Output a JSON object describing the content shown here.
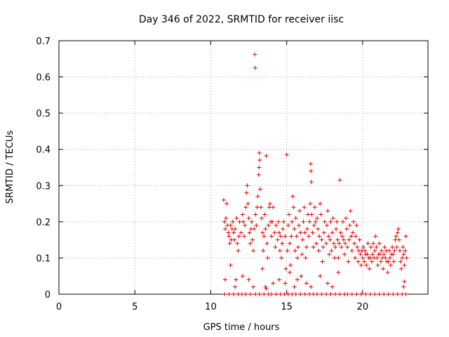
{
  "chart_data": {
    "type": "scatter",
    "title": "Day 346 of 2022, SRMTID for receiver iisc",
    "xlabel": "GPS time / hours",
    "ylabel": "SRMTID / TECUs",
    "xlim": [
      0,
      24.3
    ],
    "ylim": [
      0,
      0.7
    ],
    "xticks": [
      0,
      5,
      10,
      15,
      20
    ],
    "xtick_labels": [
      "0",
      "5",
      "10",
      "15",
      "20"
    ],
    "yticks": [
      0,
      0.1,
      0.2,
      0.3,
      0.4,
      0.5,
      0.6,
      0.7
    ],
    "ytick_labels": [
      "0",
      "0.1",
      "0.2",
      "0.3",
      "0.4",
      "0.5",
      "0.6",
      "0.7"
    ],
    "grid": true,
    "marker": "+",
    "color": "#e60000",
    "series": [
      {
        "name": "SRMTID",
        "points": [
          [
            10.85,
            0.26
          ],
          [
            10.9,
            0.2
          ],
          [
            10.95,
            0.18
          ],
          [
            11.0,
            0.21
          ],
          [
            11.05,
            0.25
          ],
          [
            11.1,
            0.19
          ],
          [
            11.15,
            0.17
          ],
          [
            11.2,
            0.16
          ],
          [
            11.25,
            0.14
          ],
          [
            11.3,
            0.19
          ],
          [
            11.35,
            0.15
          ],
          [
            11.4,
            0.18
          ],
          [
            11.45,
            0.2
          ],
          [
            11.5,
            0.17
          ],
          [
            11.55,
            0.15
          ],
          [
            11.6,
            0.18
          ],
          [
            11.7,
            0.21
          ],
          [
            11.75,
            0.14
          ],
          [
            11.8,
            0.12
          ],
          [
            11.85,
            0.16
          ],
          [
            11.9,
            0.2
          ],
          [
            12.0,
            0.17
          ],
          [
            12.1,
            0.22
          ],
          [
            12.15,
            0.2
          ],
          [
            12.2,
            0.16
          ],
          [
            12.25,
            0.19
          ],
          [
            12.3,
            0.24
          ],
          [
            12.35,
            0.28
          ],
          [
            12.4,
            0.3
          ],
          [
            12.45,
            0.25
          ],
          [
            12.5,
            0.21
          ],
          [
            12.55,
            0.17
          ],
          [
            12.6,
            0.14
          ],
          [
            12.65,
            0.18
          ],
          [
            12.7,
            0.2
          ],
          [
            12.75,
            0.15
          ],
          [
            12.8,
            0.12
          ],
          [
            12.85,
            0.18
          ],
          [
            12.9,
            0.662
          ],
          [
            12.92,
            0.625
          ],
          [
            12.95,
            0.22
          ],
          [
            13.0,
            0.19
          ],
          [
            13.05,
            0.24
          ],
          [
            13.1,
            0.27
          ],
          [
            13.15,
            0.33
          ],
          [
            13.18,
            0.35
          ],
          [
            13.2,
            0.39
          ],
          [
            13.22,
            0.37
          ],
          [
            13.25,
            0.29
          ],
          [
            13.3,
            0.24
          ],
          [
            13.35,
            0.21
          ],
          [
            13.4,
            0.17
          ],
          [
            13.45,
            0.12
          ],
          [
            13.5,
            0.16
          ],
          [
            13.55,
            0.22
          ],
          [
            13.6,
            0.18
          ],
          [
            13.65,
            0.382
          ],
          [
            13.7,
            0.14
          ],
          [
            13.75,
            0.1
          ],
          [
            13.8,
            0.19
          ],
          [
            13.85,
            0.24
          ],
          [
            13.9,
            0.25
          ],
          [
            13.95,
            0.2
          ],
          [
            14.0,
            0.16
          ],
          [
            14.05,
            0.2
          ],
          [
            14.1,
            0.24
          ],
          [
            14.2,
            0.17
          ],
          [
            14.25,
            0.13
          ],
          [
            14.3,
            0.19
          ],
          [
            14.4,
            0.15
          ],
          [
            14.45,
            0.2
          ],
          [
            14.5,
            0.17
          ],
          [
            14.55,
            0.12
          ],
          [
            14.6,
            0.16
          ],
          [
            14.65,
            0.1
          ],
          [
            14.7,
            0.14
          ],
          [
            14.75,
            0.18
          ],
          [
            14.8,
            0.2
          ],
          [
            14.9,
            0.16
          ],
          [
            14.95,
            0.07
          ],
          [
            15.0,
            0.385
          ],
          [
            15.05,
            0.12
          ],
          [
            15.1,
            0.19
          ],
          [
            15.15,
            0.22
          ],
          [
            15.2,
            0.14
          ],
          [
            15.25,
            0.08
          ],
          [
            15.3,
            0.16
          ],
          [
            15.35,
            0.2
          ],
          [
            15.4,
            0.27
          ],
          [
            15.45,
            0.24
          ],
          [
            15.5,
            0.18
          ],
          [
            15.55,
            0.12
          ],
          [
            15.6,
            0.21
          ],
          [
            15.65,
            0.16
          ],
          [
            15.7,
            0.1
          ],
          [
            15.75,
            0.13
          ],
          [
            15.8,
            0.19
          ],
          [
            15.85,
            0.23
          ],
          [
            15.9,
            0.17
          ],
          [
            15.95,
            0.05
          ],
          [
            16.0,
            0.11
          ],
          [
            16.05,
            0.15
          ],
          [
            16.1,
            0.2
          ],
          [
            16.15,
            0.24
          ],
          [
            16.2,
            0.17
          ],
          [
            16.25,
            0.1
          ],
          [
            16.3,
            0.13
          ],
          [
            16.35,
            0.18
          ],
          [
            16.4,
            0.22
          ],
          [
            16.45,
            0.16
          ],
          [
            16.5,
            0.2
          ],
          [
            16.55,
            0.25
          ],
          [
            16.58,
            0.36
          ],
          [
            16.6,
            0.34
          ],
          [
            16.62,
            0.31
          ],
          [
            16.65,
            0.22
          ],
          [
            16.7,
            0.17
          ],
          [
            16.75,
            0.13
          ],
          [
            16.8,
            0.19
          ],
          [
            16.85,
            0.24
          ],
          [
            16.9,
            0.2
          ],
          [
            16.95,
            0.14
          ],
          [
            17.0,
            0.21
          ],
          [
            17.05,
            0.18
          ],
          [
            17.1,
            0.12
          ],
          [
            17.15,
            0.16
          ],
          [
            17.2,
            0.25
          ],
          [
            17.25,
            0.22
          ],
          [
            17.3,
            0.15
          ],
          [
            17.35,
            0.09
          ],
          [
            17.4,
            0.13
          ],
          [
            17.45,
            0.17
          ],
          [
            17.5,
            0.2
          ],
          [
            17.6,
            0.14
          ],
          [
            17.65,
            0.19
          ],
          [
            17.7,
            0.23
          ],
          [
            17.75,
            0.16
          ],
          [
            17.8,
            0.11
          ],
          [
            17.85,
            0.15
          ],
          [
            17.9,
            0.2
          ],
          [
            17.95,
            0.12
          ],
          [
            18.0,
            0.17
          ],
          [
            18.05,
            0.21
          ],
          [
            18.1,
            0.14
          ],
          [
            18.15,
            0.1
          ],
          [
            18.2,
            0.13
          ],
          [
            18.25,
            0.18
          ],
          [
            18.3,
            0.2
          ],
          [
            18.35,
            0.15
          ],
          [
            18.4,
            0.1
          ],
          [
            18.45,
            0.14
          ],
          [
            18.5,
            0.315
          ],
          [
            18.55,
            0.17
          ],
          [
            18.6,
            0.13
          ],
          [
            18.65,
            0.16
          ],
          [
            18.7,
            0.2
          ],
          [
            18.75,
            0.15
          ],
          [
            18.8,
            0.11
          ],
          [
            18.85,
            0.14
          ],
          [
            18.9,
            0.21
          ],
          [
            18.95,
            0.18
          ],
          [
            19.0,
            0.13
          ],
          [
            19.05,
            0.09
          ],
          [
            19.1,
            0.15
          ],
          [
            19.15,
            0.19
          ],
          [
            19.2,
            0.23
          ],
          [
            19.25,
            0.16
          ],
          [
            19.3,
            0.12
          ],
          [
            19.35,
            0.17
          ],
          [
            19.4,
            0.2
          ],
          [
            19.45,
            0.14
          ],
          [
            19.5,
            0.1
          ],
          [
            19.55,
            0.16
          ],
          [
            19.6,
            0.19
          ],
          [
            19.65,
            0.13
          ],
          [
            19.7,
            0.09
          ],
          [
            19.75,
            0.12
          ],
          [
            19.8,
            0.15
          ],
          [
            19.85,
            0.11
          ],
          [
            19.9,
            0.08
          ],
          [
            19.95,
            0.12
          ],
          [
            20.0,
            0.1
          ],
          [
            20.05,
            0.13
          ],
          [
            20.1,
            0.09
          ],
          [
            20.15,
            0.12
          ],
          [
            20.2,
            0.11
          ],
          [
            20.25,
            0.08
          ],
          [
            20.3,
            0.11
          ],
          [
            20.35,
            0.14
          ],
          [
            20.4,
            0.1
          ],
          [
            20.45,
            0.07
          ],
          [
            20.5,
            0.1
          ],
          [
            20.55,
            0.13
          ],
          [
            20.6,
            0.09
          ],
          [
            20.65,
            0.11
          ],
          [
            20.7,
            0.14
          ],
          [
            20.75,
            0.1
          ],
          [
            20.8,
            0.12
          ],
          [
            20.85,
            0.16
          ],
          [
            20.9,
            0.13
          ],
          [
            20.95,
            0.1
          ],
          [
            21.0,
            0.08
          ],
          [
            21.05,
            0.11
          ],
          [
            21.1,
            0.14
          ],
          [
            21.15,
            0.11
          ],
          [
            21.2,
            0.09
          ],
          [
            21.25,
            0.12
          ],
          [
            21.3,
            0.1
          ],
          [
            21.35,
            0.07
          ],
          [
            21.4,
            0.11
          ],
          [
            21.45,
            0.13
          ],
          [
            21.5,
            0.1
          ],
          [
            21.55,
            0.12
          ],
          [
            21.6,
            0.09
          ],
          [
            21.65,
            0.06
          ],
          [
            21.7,
            0.09
          ],
          [
            21.75,
            0.12
          ],
          [
            21.8,
            0.1
          ],
          [
            21.85,
            0.08
          ],
          [
            21.9,
            0.11
          ],
          [
            21.95,
            0.13
          ],
          [
            22.0,
            0.11
          ],
          [
            22.05,
            0.09
          ],
          [
            22.1,
            0.12
          ],
          [
            22.15,
            0.15
          ],
          [
            22.2,
            0.16
          ],
          [
            22.25,
            0.13
          ],
          [
            22.3,
            0.17
          ],
          [
            22.35,
            0.18
          ],
          [
            22.4,
            0.15
          ],
          [
            22.45,
            0.12
          ],
          [
            22.5,
            0.09
          ],
          [
            22.55,
            0.07
          ],
          [
            22.6,
            0.1
          ],
          [
            22.65,
            0.13
          ],
          [
            22.7,
            0.11
          ],
          [
            22.75,
            0.08
          ],
          [
            22.8,
            0.12
          ],
          [
            22.85,
            0.16
          ],
          [
            22.9,
            0.1
          ],
          [
            10.9,
            0.0
          ],
          [
            11.2,
            0.0
          ],
          [
            11.5,
            0.0
          ],
          [
            11.8,
            0.0
          ],
          [
            12.05,
            0.0
          ],
          [
            12.3,
            0.0
          ],
          [
            12.6,
            0.0
          ],
          [
            12.95,
            0.0
          ],
          [
            13.2,
            0.0
          ],
          [
            13.5,
            0.0
          ],
          [
            13.8,
            0.0
          ],
          [
            14.0,
            0.0
          ],
          [
            14.3,
            0.0
          ],
          [
            14.6,
            0.0
          ],
          [
            14.85,
            0.0
          ],
          [
            15.1,
            0.0
          ],
          [
            15.35,
            0.0
          ],
          [
            15.6,
            0.0
          ],
          [
            15.9,
            0.0
          ],
          [
            16.2,
            0.0
          ],
          [
            16.5,
            0.0
          ],
          [
            16.75,
            0.0
          ],
          [
            17.0,
            0.0
          ],
          [
            17.3,
            0.0
          ],
          [
            17.6,
            0.0
          ],
          [
            17.9,
            0.0
          ],
          [
            18.2,
            0.0
          ],
          [
            18.5,
            0.0
          ],
          [
            18.8,
            0.0
          ],
          [
            19.0,
            0.0
          ],
          [
            19.3,
            0.0
          ],
          [
            19.6,
            0.0
          ],
          [
            19.9,
            0.0
          ],
          [
            20.2,
            0.0
          ],
          [
            20.5,
            0.0
          ],
          [
            20.8,
            0.0
          ],
          [
            21.1,
            0.0
          ],
          [
            21.4,
            0.0
          ],
          [
            21.7,
            0.0
          ],
          [
            22.0,
            0.0
          ],
          [
            22.3,
            0.0
          ],
          [
            22.6,
            0.0
          ],
          [
            22.85,
            0.0
          ],
          [
            10.95,
            0.04
          ],
          [
            11.3,
            0.08
          ],
          [
            11.6,
            0.02
          ],
          [
            11.65,
            0.04
          ],
          [
            12.1,
            0.05
          ],
          [
            12.5,
            0.04
          ],
          [
            12.8,
            0.02
          ],
          [
            13.4,
            0.07
          ],
          [
            13.6,
            0.02
          ],
          [
            13.65,
            0.015
          ],
          [
            14.1,
            0.03
          ],
          [
            14.5,
            0.04
          ],
          [
            14.9,
            0.03
          ],
          [
            15.2,
            0.06
          ],
          [
            15.5,
            0.02
          ],
          [
            15.7,
            0.04
          ],
          [
            16.3,
            0.03
          ],
          [
            16.6,
            0.02
          ],
          [
            17.2,
            0.05
          ],
          [
            17.7,
            0.03
          ],
          [
            18.0,
            0.02
          ],
          [
            18.4,
            0.06
          ],
          [
            22.7,
            0.02
          ],
          [
            22.75,
            0.035
          ]
        ]
      }
    ]
  }
}
